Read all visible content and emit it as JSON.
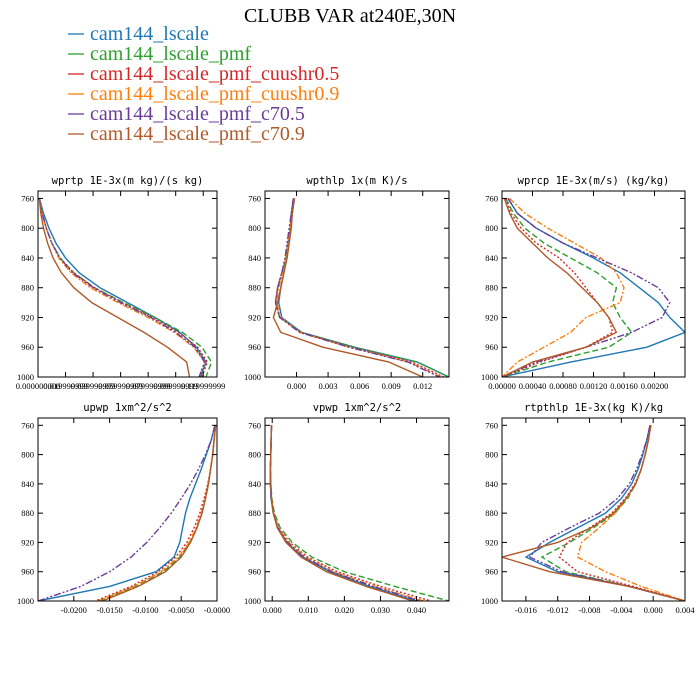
{
  "figure_title": "CLUBB VAR at240E,30N",
  "colors": {
    "cam144_lscale": "#1f77b4",
    "cam144_lscale_pmf": "#2ca02c",
    "cam144_lscale_pmf_cuushr0.5": "#d62728",
    "cam144_lscale_pmf_cuushr0.9": "#ff7f0e",
    "cam144_lscale_pmf_c70.5": "#6a3d9a",
    "cam144_lscale_pmf_c70.9": "#b15928"
  },
  "legend": [
    {
      "name": "cam144_lscale",
      "color": "#1f77b4",
      "dash": ""
    },
    {
      "name": "cam144_lscale_pmf",
      "color": "#2ca02c",
      "dash": "6,3"
    },
    {
      "name": "cam144_lscale_pmf_cuushr0.5",
      "color": "#d62728",
      "dash": "2,2"
    },
    {
      "name": "cam144_lscale_pmf_cuushr0.9",
      "color": "#ff7f0e",
      "dash": "6,2,2,2"
    },
    {
      "name": "cam144_lscale_pmf_c70.5",
      "color": "#6a3d9a",
      "dash": "7,2,2,2,2,2"
    },
    {
      "name": "cam144_lscale_pmf_c70.9",
      "color": "#b15928",
      "dash": ""
    }
  ],
  "chart_data": [
    {
      "type": "line",
      "title": "wprtp  1E-3x(m kg)/(s kg)",
      "xlim": [
        0.0,
        0.13
      ],
      "ylim": [
        1000,
        750
      ],
      "xticks": [
        0.0,
        0.02,
        0.04,
        0.06,
        0.08,
        0.1,
        0.12
      ],
      "xtick_labels": [
        "0.000000000",
        "0.019999999",
        "0.039999999",
        "0.059999999",
        "0.079999999",
        "0.099999999",
        "0.119999999"
      ],
      "yticks": [
        1000,
        960,
        920,
        880,
        840,
        800,
        760
      ],
      "p": [
        760,
        780,
        800,
        820,
        840,
        860,
        880,
        900,
        920,
        940,
        960,
        980,
        1000
      ],
      "series": [
        {
          "name": "cam144_lscale",
          "values": [
            0.001,
            0.004,
            0.008,
            0.013,
            0.02,
            0.03,
            0.045,
            0.065,
            0.085,
            0.103,
            0.115,
            0.122,
            0.118
          ]
        },
        {
          "name": "cam144_lscale_pmf",
          "values": [
            0.001,
            0.003,
            0.006,
            0.01,
            0.016,
            0.026,
            0.041,
            0.062,
            0.085,
            0.105,
            0.119,
            0.126,
            0.122
          ]
        },
        {
          "name": "cam144_lscale_pmf_cuushr0.5",
          "values": [
            0.001,
            0.003,
            0.006,
            0.01,
            0.016,
            0.026,
            0.041,
            0.061,
            0.083,
            0.102,
            0.116,
            0.123,
            0.119
          ]
        },
        {
          "name": "cam144_lscale_pmf_cuushr0.9",
          "values": [
            0.001,
            0.003,
            0.006,
            0.01,
            0.015,
            0.024,
            0.038,
            0.058,
            0.08,
            0.099,
            0.113,
            0.121,
            0.117
          ]
        },
        {
          "name": "cam144_lscale_pmf_c70.5",
          "values": [
            0.001,
            0.003,
            0.006,
            0.01,
            0.016,
            0.025,
            0.04,
            0.06,
            0.082,
            0.1,
            0.114,
            0.121,
            0.117
          ]
        },
        {
          "name": "cam144_lscale_pmf_c70.9",
          "values": [
            0.001,
            0.002,
            0.004,
            0.007,
            0.011,
            0.017,
            0.026,
            0.039,
            0.058,
            0.077,
            0.094,
            0.108,
            0.11
          ]
        }
      ]
    },
    {
      "type": "line",
      "title": "wpthlp  1x(m K)/s",
      "xlim": [
        -0.003,
        0.0145
      ],
      "ylim": [
        1000,
        750
      ],
      "xticks": [
        0.0,
        0.003,
        0.006,
        0.009,
        0.012
      ],
      "xtick_labels": [
        "0.000",
        "0.003",
        "0.006",
        "0.009",
        "0.012"
      ],
      "yticks": [
        1000,
        960,
        920,
        880,
        840,
        800,
        760
      ],
      "p": [
        760,
        780,
        800,
        820,
        840,
        860,
        880,
        900,
        920,
        940,
        960,
        980,
        1000
      ],
      "series": [
        {
          "name": "cam144_lscale",
          "values": [
            -0.0003,
            -0.0005,
            -0.0006,
            -0.0008,
            -0.001,
            -0.0012,
            -0.0015,
            -0.0017,
            -0.0014,
            0.0005,
            0.0055,
            0.0115,
            0.0145
          ]
        },
        {
          "name": "cam144_lscale_pmf",
          "values": [
            -0.0002,
            -0.0004,
            -0.0006,
            -0.0008,
            -0.001,
            -0.0014,
            -0.0018,
            -0.002,
            -0.0016,
            0.0005,
            0.0055,
            0.0115,
            0.0145
          ]
        },
        {
          "name": "cam144_lscale_pmf_cuushr0.5",
          "values": [
            -0.0002,
            -0.0004,
            -0.0006,
            -0.0008,
            -0.001,
            -0.0014,
            -0.0018,
            -0.002,
            -0.0016,
            0.0004,
            0.0052,
            0.011,
            0.014
          ]
        },
        {
          "name": "cam144_lscale_pmf_cuushr0.9",
          "values": [
            -0.0002,
            -0.0004,
            -0.0006,
            -0.0008,
            -0.001,
            -0.0013,
            -0.0017,
            -0.0019,
            -0.0015,
            0.0003,
            0.005,
            0.0107,
            0.0137
          ]
        },
        {
          "name": "cam144_lscale_pmf_c70.5",
          "values": [
            -0.0003,
            -0.0005,
            -0.0007,
            -0.0009,
            -0.0011,
            -0.0014,
            -0.0018,
            -0.002,
            -0.0016,
            0.0003,
            0.005,
            0.0106,
            0.0136
          ]
        },
        {
          "name": "cam144_lscale_pmf_c70.9",
          "values": [
            -0.0002,
            -0.0004,
            -0.0005,
            -0.0007,
            -0.0009,
            -0.0012,
            -0.0015,
            -0.0018,
            -0.0022,
            -0.0015,
            0.0025,
            0.0088,
            0.012
          ]
        }
      ]
    },
    {
      "type": "line",
      "title": "wprcp  1E-3x(m/s) (kg/kg)",
      "xlim": [
        0.0,
        0.0024
      ],
      "ylim": [
        1000,
        750
      ],
      "xticks": [
        0.0,
        0.0004,
        0.0008,
        0.0012,
        0.0016,
        0.002
      ],
      "xtick_labels": [
        "0.00000",
        "0.00040",
        "0.00080",
        "0.00120",
        "0.00160",
        "0.00200"
      ],
      "yticks": [
        1000,
        960,
        920,
        880,
        840,
        800,
        760
      ],
      "p": [
        760,
        780,
        800,
        820,
        840,
        860,
        880,
        900,
        920,
        940,
        960,
        980,
        1000
      ],
      "series": [
        {
          "name": "cam144_lscale",
          "values": [
            8e-05,
            0.0002,
            0.00045,
            0.0008,
            0.0012,
            0.00155,
            0.0018,
            0.00205,
            0.0022,
            0.0024,
            0.0019,
            0.0009,
            0.0
          ]
        },
        {
          "name": "cam144_lscale_pmf",
          "values": [
            5e-05,
            0.00015,
            0.0003,
            0.00055,
            0.0009,
            0.00125,
            0.0015,
            0.00145,
            0.00155,
            0.0017,
            0.0014,
            0.0006,
            0.0
          ]
        },
        {
          "name": "cam144_lscale_pmf_cuushr0.5",
          "values": [
            5e-05,
            0.00012,
            0.00025,
            0.00045,
            0.00075,
            0.00095,
            0.0011,
            0.00125,
            0.0014,
            0.00145,
            0.0011,
            0.0005,
            0.0
          ]
        },
        {
          "name": "cam144_lscale_pmf_cuushr0.9",
          "values": [
            0.0001,
            0.0003,
            0.0006,
            0.00095,
            0.0013,
            0.0015,
            0.0016,
            0.00155,
            0.0011,
            0.0009,
            0.00055,
            0.0002,
            0.0
          ]
        },
        {
          "name": "cam144_lscale_pmf_c70.5",
          "values": [
            8e-05,
            0.0002,
            0.00045,
            0.0008,
            0.00125,
            0.0017,
            0.00205,
            0.0022,
            0.0021,
            0.0017,
            0.0011,
            0.00045,
            0.0
          ]
        },
        {
          "name": "cam144_lscale_pmf_c70.9",
          "values": [
            3e-05,
            0.0001,
            0.0002,
            0.0004,
            0.0006,
            0.00085,
            0.00105,
            0.00125,
            0.0014,
            0.0015,
            0.0011,
            0.0004,
            0.0
          ]
        }
      ]
    },
    {
      "type": "line",
      "title": "upwp  1xm^2/s^2",
      "xlim": [
        -0.025,
        0.0
      ],
      "ylim": [
        1000,
        750
      ],
      "xticks": [
        -0.02,
        -0.015,
        -0.01,
        -0.005,
        0.0
      ],
      "xtick_labels": [
        "-0.0200",
        "-0.0150",
        "-0.0100",
        "-0.0050",
        "-0.0000"
      ],
      "yticks": [
        1000,
        960,
        920,
        880,
        840,
        800,
        760
      ],
      "p": [
        760,
        780,
        800,
        820,
        840,
        860,
        880,
        900,
        920,
        940,
        960,
        980,
        1000
      ],
      "series": [
        {
          "name": "cam144_lscale",
          "values": [
            -0.0003,
            -0.0008,
            -0.0015,
            -0.0022,
            -0.003,
            -0.0038,
            -0.0044,
            -0.0048,
            -0.0052,
            -0.006,
            -0.0085,
            -0.015,
            -0.025
          ]
        },
        {
          "name": "cam144_lscale_pmf",
          "values": [
            -0.0002,
            -0.0004,
            -0.0006,
            -0.0009,
            -0.0012,
            -0.0016,
            -0.0021,
            -0.0028,
            -0.0038,
            -0.0052,
            -0.0075,
            -0.0115,
            -0.0165
          ]
        },
        {
          "name": "cam144_lscale_pmf_cuushr0.5",
          "values": [
            -0.0002,
            -0.0004,
            -0.0006,
            -0.0009,
            -0.0013,
            -0.0018,
            -0.0024,
            -0.0032,
            -0.0042,
            -0.0058,
            -0.0082,
            -0.012,
            -0.017
          ]
        },
        {
          "name": "cam144_lscale_pmf_cuushr0.9",
          "values": [
            -0.0002,
            -0.0004,
            -0.0006,
            -0.0009,
            -0.0012,
            -0.0016,
            -0.0022,
            -0.0029,
            -0.0039,
            -0.0054,
            -0.0078,
            -0.0116,
            -0.0166
          ]
        },
        {
          "name": "cam144_lscale_pmf_c70.5",
          "values": [
            -0.0003,
            -0.0008,
            -0.0016,
            -0.0026,
            -0.0037,
            -0.005,
            -0.0064,
            -0.008,
            -0.0098,
            -0.012,
            -0.015,
            -0.019,
            -0.025
          ]
        },
        {
          "name": "cam144_lscale_pmf_c70.9",
          "values": [
            -0.0002,
            -0.0004,
            -0.0006,
            -0.0009,
            -0.0012,
            -0.0016,
            -0.0021,
            -0.0028,
            -0.0037,
            -0.005,
            -0.0072,
            -0.011,
            -0.016
          ]
        }
      ]
    },
    {
      "type": "line",
      "title": "vpwp  1xm^2/s^2",
      "xlim": [
        -0.002,
        0.049
      ],
      "ylim": [
        1000,
        750
      ],
      "xticks": [
        0.0,
        0.01,
        0.02,
        0.03,
        0.04
      ],
      "xtick_labels": [
        "0.000",
        "0.010",
        "0.020",
        "0.030",
        "0.040"
      ],
      "yticks": [
        1000,
        960,
        920,
        880,
        840,
        800,
        760
      ],
      "p": [
        760,
        780,
        800,
        820,
        840,
        860,
        880,
        900,
        920,
        940,
        960,
        980,
        1000
      ],
      "series": [
        {
          "name": "cam144_lscale",
          "values": [
            -0.0002,
            -0.0003,
            -0.0004,
            -0.0005,
            -0.0005,
            -0.0003,
            0.0003,
            0.0015,
            0.004,
            0.0085,
            0.016,
            0.027,
            0.04
          ]
        },
        {
          "name": "cam144_lscale_pmf",
          "values": [
            -0.0002,
            -0.0003,
            -0.0004,
            -0.0005,
            -0.0004,
            -0.0001,
            0.0006,
            0.0022,
            0.0055,
            0.011,
            0.02,
            0.034,
            0.049
          ]
        },
        {
          "name": "cam144_lscale_pmf_cuushr0.5",
          "values": [
            -0.0002,
            -0.0003,
            -0.0004,
            -0.0005,
            -0.0004,
            -0.0002,
            0.0004,
            0.0018,
            0.0048,
            0.0098,
            0.018,
            0.03,
            0.044
          ]
        },
        {
          "name": "cam144_lscale_pmf_cuushr0.9",
          "values": [
            -0.0002,
            -0.0003,
            -0.0004,
            -0.0005,
            -0.0004,
            -0.0002,
            0.0004,
            0.0017,
            0.0045,
            0.0092,
            0.017,
            0.0285,
            0.042
          ]
        },
        {
          "name": "cam144_lscale_pmf_c70.5",
          "values": [
            -0.0002,
            -0.0003,
            -0.0004,
            -0.0005,
            -0.0005,
            -0.0003,
            0.0003,
            0.0016,
            0.0042,
            0.0088,
            0.0165,
            0.028,
            0.041
          ]
        },
        {
          "name": "cam144_lscale_pmf_c70.9",
          "values": [
            -0.0002,
            -0.0003,
            -0.0004,
            -0.0005,
            -0.0004,
            -0.0002,
            0.0003,
            0.0014,
            0.0038,
            0.008,
            0.015,
            0.026,
            0.039
          ]
        }
      ]
    },
    {
      "type": "line",
      "title": "rtpthlp  1E-3x(kg K)/kg",
      "xlim": [
        -0.019,
        0.004
      ],
      "ylim": [
        1000,
        750
      ],
      "xticks": [
        -0.016,
        -0.012,
        -0.008,
        -0.004,
        0.0,
        0.004
      ],
      "xtick_labels": [
        "-0.016",
        "-0.012",
        "-0.008",
        "-0.004",
        "0.000",
        "0.004"
      ],
      "yticks": [
        1000,
        960,
        920,
        880,
        840,
        800,
        760
      ],
      "p": [
        760,
        780,
        800,
        820,
        840,
        860,
        880,
        900,
        920,
        940,
        960,
        980,
        1000
      ],
      "series": [
        {
          "name": "cam144_lscale",
          "values": [
            -0.0004,
            -0.0008,
            -0.0013,
            -0.0019,
            -0.0027,
            -0.004,
            -0.006,
            -0.0095,
            -0.013,
            -0.016,
            -0.012,
            -0.003,
            0.004
          ]
        },
        {
          "name": "cam144_lscale_pmf",
          "values": [
            -0.0003,
            -0.0006,
            -0.001,
            -0.0015,
            -0.0022,
            -0.0032,
            -0.0048,
            -0.0075,
            -0.0105,
            -0.014,
            -0.011,
            -0.003,
            0.004
          ]
        },
        {
          "name": "cam144_lscale_pmf_cuushr0.5",
          "values": [
            -0.0003,
            -0.0006,
            -0.001,
            -0.0015,
            -0.0023,
            -0.0035,
            -0.0052,
            -0.008,
            -0.0108,
            -0.0118,
            -0.0095,
            -0.0025,
            0.004
          ]
        },
        {
          "name": "cam144_lscale_pmf_cuushr0.9",
          "values": [
            -0.0003,
            -0.0006,
            -0.001,
            -0.0015,
            -0.0022,
            -0.0033,
            -0.0048,
            -0.0068,
            -0.009,
            -0.0095,
            -0.006,
            -0.0015,
            0.004
          ]
        },
        {
          "name": "cam144_lscale_pmf_c70.5",
          "values": [
            -0.0004,
            -0.0008,
            -0.0014,
            -0.0021,
            -0.003,
            -0.0045,
            -0.0068,
            -0.0105,
            -0.014,
            -0.0155,
            -0.0115,
            -0.003,
            0.004
          ]
        },
        {
          "name": "cam144_lscale_pmf_c70.9",
          "values": [
            -0.0003,
            -0.0006,
            -0.001,
            -0.0015,
            -0.0022,
            -0.0034,
            -0.005,
            -0.0078,
            -0.012,
            -0.019,
            -0.013,
            -0.003,
            0.004
          ]
        }
      ]
    }
  ]
}
